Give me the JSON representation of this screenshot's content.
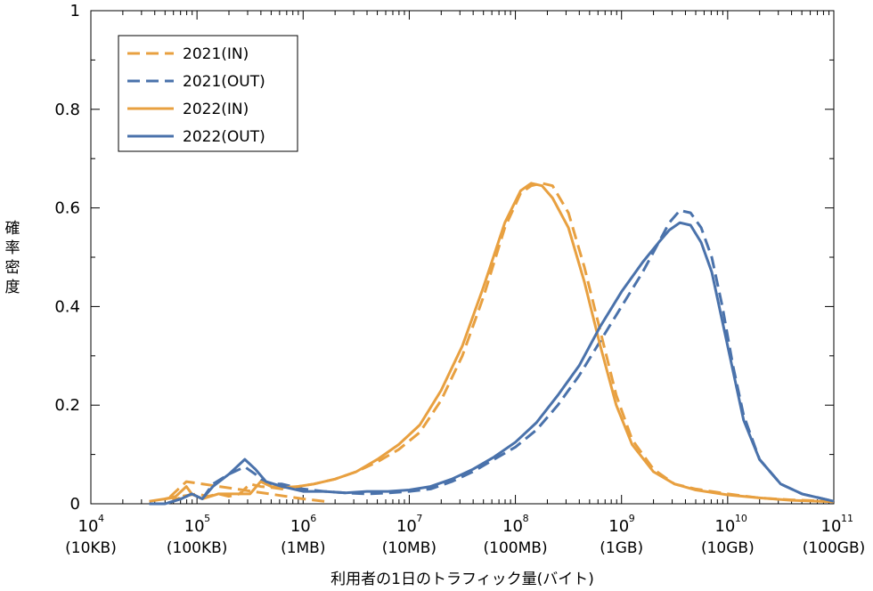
{
  "chart_data": {
    "type": "line",
    "xscale": "log",
    "xlim": [
      10000,
      100000000000
    ],
    "ylim": [
      0,
      1
    ],
    "xlabel": "利用者の1日のトラフィック量(バイト)",
    "ylabel": "確率密度",
    "xticks": [
      {
        "value": 10000,
        "base": "10",
        "exp": "4",
        "sub": "(10KB)"
      },
      {
        "value": 100000,
        "base": "10",
        "exp": "5",
        "sub": "(100KB)"
      },
      {
        "value": 1000000,
        "base": "10",
        "exp": "6",
        "sub": "(1MB)"
      },
      {
        "value": 10000000,
        "base": "10",
        "exp": "7",
        "sub": "(10MB)"
      },
      {
        "value": 100000000,
        "base": "10",
        "exp": "8",
        "sub": "(100MB)"
      },
      {
        "value": 1000000000,
        "base": "10",
        "exp": "9",
        "sub": "(1GB)"
      },
      {
        "value": 10000000000,
        "base": "10",
        "exp": "10",
        "sub": "(10GB)"
      },
      {
        "value": 100000000000,
        "base": "10",
        "exp": "11",
        "sub": "(100GB)"
      }
    ],
    "yticks": [
      "0",
      "0.2",
      "0.4",
      "0.6",
      "0.8",
      "1"
    ],
    "legend_position": "top-left",
    "series": [
      {
        "name": "2021(IN)",
        "color": "#e8a040",
        "dash": "dashed",
        "points": [
          [
            6.2,
            0.005
          ],
          [
            6.0,
            0.01
          ],
          [
            4.9,
            0.045
          ],
          [
            4.75,
            0.015
          ],
          [
            4.85,
            0.01
          ],
          [
            4.7,
            0.01
          ],
          [
            5.0,
            0.02
          ],
          [
            5.1,
            0.015
          ],
          [
            5.2,
            0.02
          ],
          [
            5.3,
            0.015
          ],
          [
            5.4,
            0.02
          ],
          [
            5.5,
            0.04
          ],
          [
            5.6,
            0.035
          ],
          [
            5.7,
            0.033
          ],
          [
            5.8,
            0.03
          ],
          [
            5.95,
            0.035
          ],
          [
            6.1,
            0.04
          ],
          [
            6.3,
            0.05
          ],
          [
            6.5,
            0.065
          ],
          [
            6.7,
            0.085
          ],
          [
            6.9,
            0.11
          ],
          [
            7.1,
            0.145
          ],
          [
            7.3,
            0.21
          ],
          [
            7.5,
            0.3
          ],
          [
            7.7,
            0.42
          ],
          [
            7.9,
            0.56
          ],
          [
            8.05,
            0.63
          ],
          [
            8.15,
            0.645
          ],
          [
            8.25,
            0.65
          ],
          [
            8.35,
            0.645
          ],
          [
            8.5,
            0.59
          ],
          [
            8.65,
            0.48
          ],
          [
            8.8,
            0.35
          ],
          [
            8.95,
            0.22
          ],
          [
            9.1,
            0.13
          ],
          [
            9.3,
            0.07
          ],
          [
            9.5,
            0.04
          ],
          [
            9.7,
            0.03
          ],
          [
            10.0,
            0.02
          ],
          [
            10.3,
            0.012
          ],
          [
            10.6,
            0.008
          ],
          [
            11.0,
            0.005
          ]
        ]
      },
      {
        "name": "2021(OUT)",
        "color": "#4a72ab",
        "dash": "dashed",
        "points": [
          [
            4.55,
            0.0
          ],
          [
            4.7,
            0.0
          ],
          [
            4.85,
            0.01
          ],
          [
            4.95,
            0.02
          ],
          [
            5.05,
            0.01
          ],
          [
            5.15,
            0.04
          ],
          [
            5.3,
            0.06
          ],
          [
            5.45,
            0.075
          ],
          [
            5.55,
            0.06
          ],
          [
            5.65,
            0.04
          ],
          [
            5.8,
            0.04
          ],
          [
            6.0,
            0.03
          ],
          [
            6.2,
            0.025
          ],
          [
            6.4,
            0.022
          ],
          [
            6.6,
            0.02
          ],
          [
            6.8,
            0.022
          ],
          [
            7.0,
            0.025
          ],
          [
            7.2,
            0.03
          ],
          [
            7.4,
            0.045
          ],
          [
            7.6,
            0.065
          ],
          [
            7.8,
            0.09
          ],
          [
            8.0,
            0.115
          ],
          [
            8.2,
            0.15
          ],
          [
            8.4,
            0.2
          ],
          [
            8.6,
            0.26
          ],
          [
            8.8,
            0.33
          ],
          [
            9.0,
            0.4
          ],
          [
            9.2,
            0.47
          ],
          [
            9.35,
            0.53
          ],
          [
            9.45,
            0.57
          ],
          [
            9.55,
            0.595
          ],
          [
            9.65,
            0.59
          ],
          [
            9.75,
            0.56
          ],
          [
            9.85,
            0.5
          ],
          [
            9.95,
            0.4
          ],
          [
            10.05,
            0.28
          ],
          [
            10.15,
            0.18
          ],
          [
            10.3,
            0.09
          ],
          [
            10.5,
            0.04
          ],
          [
            10.7,
            0.02
          ],
          [
            11.0,
            0.005
          ]
        ]
      },
      {
        "name": "2022(IN)",
        "color": "#e8a040",
        "dash": "solid",
        "points": [
          [
            4.55,
            0.005
          ],
          [
            4.7,
            0.01
          ],
          [
            4.8,
            0.015
          ],
          [
            4.9,
            0.035
          ],
          [
            4.95,
            0.02
          ],
          [
            5.05,
            0.01
          ],
          [
            5.2,
            0.02
          ],
          [
            5.35,
            0.02
          ],
          [
            5.5,
            0.02
          ],
          [
            5.6,
            0.045
          ],
          [
            5.7,
            0.035
          ],
          [
            5.8,
            0.033
          ],
          [
            5.95,
            0.035
          ],
          [
            6.1,
            0.04
          ],
          [
            6.3,
            0.05
          ],
          [
            6.5,
            0.065
          ],
          [
            6.7,
            0.09
          ],
          [
            6.9,
            0.12
          ],
          [
            7.1,
            0.16
          ],
          [
            7.3,
            0.23
          ],
          [
            7.5,
            0.32
          ],
          [
            7.7,
            0.44
          ],
          [
            7.9,
            0.57
          ],
          [
            8.05,
            0.635
          ],
          [
            8.15,
            0.65
          ],
          [
            8.25,
            0.645
          ],
          [
            8.35,
            0.62
          ],
          [
            8.5,
            0.56
          ],
          [
            8.65,
            0.45
          ],
          [
            8.8,
            0.32
          ],
          [
            8.95,
            0.2
          ],
          [
            9.1,
            0.12
          ],
          [
            9.3,
            0.065
          ],
          [
            9.5,
            0.04
          ],
          [
            9.7,
            0.028
          ],
          [
            10.0,
            0.018
          ],
          [
            10.3,
            0.012
          ],
          [
            10.6,
            0.007
          ],
          [
            11.0,
            0.004
          ]
        ]
      },
      {
        "name": "2022(OUT)",
        "color": "#4a72ab",
        "dash": "solid",
        "points": [
          [
            4.55,
            0.0
          ],
          [
            4.7,
            0.0
          ],
          [
            4.85,
            0.01
          ],
          [
            4.95,
            0.02
          ],
          [
            5.05,
            0.01
          ],
          [
            5.15,
            0.035
          ],
          [
            5.3,
            0.06
          ],
          [
            5.45,
            0.09
          ],
          [
            5.55,
            0.07
          ],
          [
            5.65,
            0.045
          ],
          [
            5.8,
            0.035
          ],
          [
            6.0,
            0.025
          ],
          [
            6.2,
            0.025
          ],
          [
            6.4,
            0.022
          ],
          [
            6.6,
            0.025
          ],
          [
            6.8,
            0.025
          ],
          [
            7.0,
            0.028
          ],
          [
            7.2,
            0.035
          ],
          [
            7.4,
            0.05
          ],
          [
            7.6,
            0.07
          ],
          [
            7.8,
            0.095
          ],
          [
            8.0,
            0.125
          ],
          [
            8.2,
            0.165
          ],
          [
            8.4,
            0.22
          ],
          [
            8.6,
            0.28
          ],
          [
            8.8,
            0.36
          ],
          [
            9.0,
            0.43
          ],
          [
            9.2,
            0.49
          ],
          [
            9.35,
            0.53
          ],
          [
            9.45,
            0.555
          ],
          [
            9.55,
            0.57
          ],
          [
            9.65,
            0.565
          ],
          [
            9.75,
            0.53
          ],
          [
            9.85,
            0.47
          ],
          [
            9.95,
            0.37
          ],
          [
            10.05,
            0.27
          ],
          [
            10.15,
            0.17
          ],
          [
            10.3,
            0.09
          ],
          [
            10.5,
            0.04
          ],
          [
            10.7,
            0.02
          ],
          [
            11.0,
            0.005
          ]
        ]
      }
    ]
  }
}
